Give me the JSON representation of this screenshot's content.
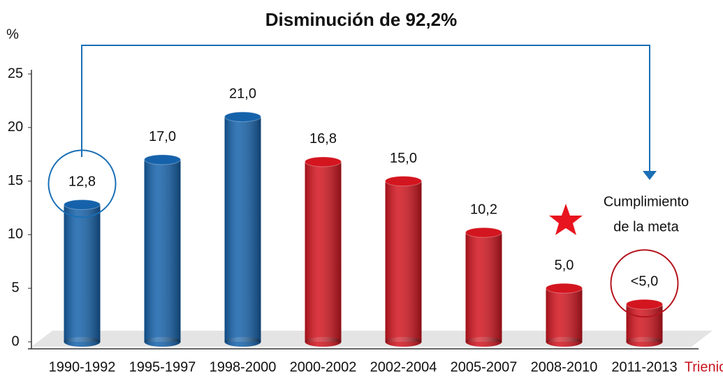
{
  "chart_data": {
    "type": "bar",
    "title": "Disminución de 92,2%",
    "y_label": "%",
    "x_label": "Trienio",
    "categories": [
      "1990-1992",
      "1995-1997",
      "1998-2000",
      "2000-2002",
      "2002-2004",
      "2005-2007",
      "2008-2010",
      "2011-2013"
    ],
    "values": [
      12.8,
      17.0,
      21.0,
      16.8,
      15.0,
      10.2,
      5.0,
      3.5
    ],
    "value_labels": [
      "12,8",
      "17,0",
      "21,0",
      "16,8",
      "15,0",
      "10,2",
      "5,0",
      "<5,0"
    ],
    "colors": [
      "#1562ab",
      "#1562ab",
      "#1562ab",
      "#d3151f",
      "#d3151f",
      "#d3151f",
      "#d3151f",
      "#d3151f"
    ],
    "annotation": [
      "Cumplimiento",
      "de la meta"
    ],
    "ylim": [
      0,
      25
    ],
    "yticks": [
      0,
      5,
      10,
      15,
      20,
      25
    ],
    "grid": false
  }
}
